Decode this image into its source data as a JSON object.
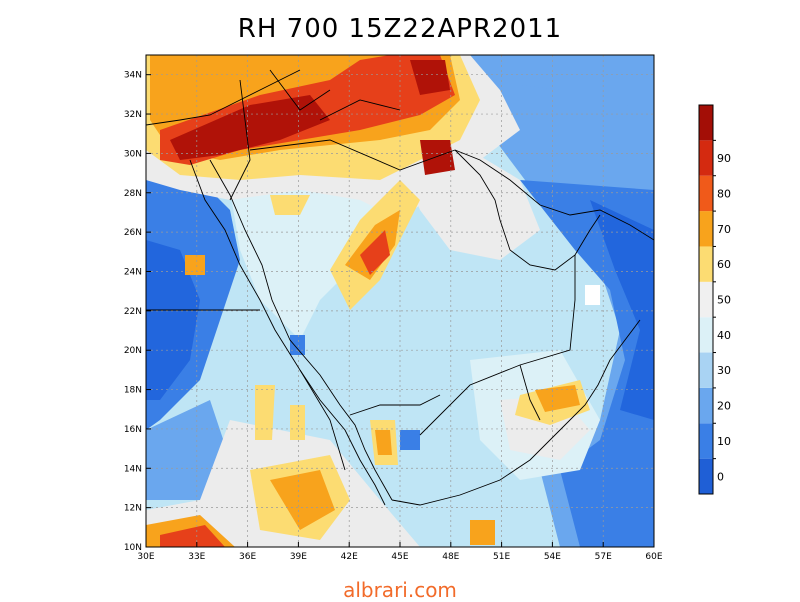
{
  "title": "RH 700  15Z22APR2011",
  "watermark": "albrari.com",
  "map": {
    "lon_ticks": [
      "30E",
      "33E",
      "36E",
      "39E",
      "42E",
      "45E",
      "48E",
      "51E",
      "54E",
      "57E",
      "60E"
    ],
    "lat_ticks": [
      "10N",
      "12N",
      "14N",
      "16N",
      "18N",
      "20N",
      "22N",
      "24N",
      "26N",
      "28N",
      "30N",
      "32N",
      "34N"
    ],
    "grid": true
  },
  "colorbar": {
    "labels": [
      "0",
      "10",
      "20",
      "30",
      "40",
      "50",
      "60",
      "70",
      "80",
      "90"
    ],
    "colors": [
      "#1f5fd6",
      "#3a7fe6",
      "#6aa7ee",
      "#a9d3f3",
      "#dcf1f7",
      "#f0f0f0",
      "#fcdc72",
      "#f8a31c",
      "#f05a1a",
      "#d42a10",
      "#a30e06"
    ]
  },
  "palette": {
    "low": "#2266dd",
    "mid_low": "#6aa7ee",
    "mid": "#bfe5f5",
    "neutral": "#ececec",
    "yellow": "#fcdc72",
    "orange": "#f8a31c",
    "red": "#e6401a",
    "dark_red": "#b01208"
  }
}
